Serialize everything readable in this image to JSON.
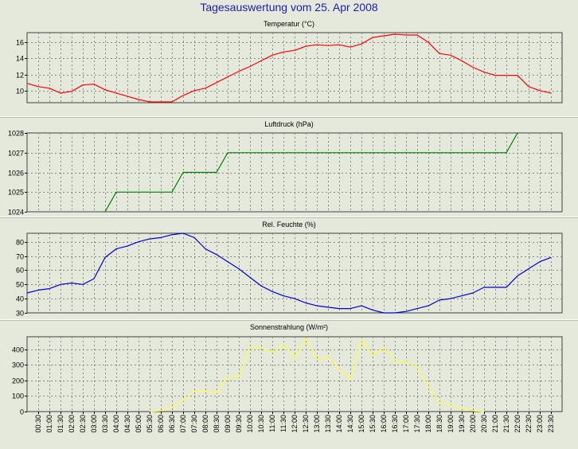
{
  "title": "Tagesauswertung vom 25. Apr 2008",
  "colors": {
    "background": "#e5e9dc",
    "plot_bg": "#e5e9dc",
    "grid": "#8a8a8a",
    "separator": "#ffffff",
    "temperature": "#ff0000",
    "pressure": "#008000",
    "humidity": "#0000cc",
    "radiation": "#ffff40"
  },
  "x_labels": [
    "00:30",
    "01:00",
    "01:30",
    "02:00",
    "02:30",
    "03:00",
    "03:30",
    "04:00",
    "04:30",
    "05:00",
    "05:30",
    "06:00",
    "06:30",
    "07:00",
    "07:30",
    "08:00",
    "08:30",
    "09:00",
    "09:30",
    "10:00",
    "10:30",
    "11:00",
    "11:30",
    "12:00",
    "12:30",
    "13:00",
    "13:30",
    "14:00",
    "14:30",
    "15:00",
    "15:30",
    "16:00",
    "16:30",
    "17:00",
    "17:30",
    "18:00",
    "18:30",
    "19:00",
    "19:30",
    "20:00",
    "20:30",
    "21:00",
    "21:30",
    "22:00",
    "22:30",
    "23:00",
    "23:30"
  ],
  "chart_data": [
    {
      "type": "line",
      "title": "Temperatur (°C)",
      "grid": true,
      "ylim": [
        8.5,
        17.2
      ],
      "yticks": [
        "10",
        "12",
        "14",
        "16"
      ],
      "series": [
        {
          "color": "#ff0000",
          "x": [
            0,
            1,
            2,
            3,
            4,
            5,
            6,
            7,
            8,
            9,
            10,
            11,
            12,
            13,
            14,
            15,
            16,
            17,
            18,
            19,
            20,
            21,
            22,
            23,
            24,
            25,
            26,
            27,
            28,
            29,
            30,
            31,
            32,
            33,
            34,
            35,
            36,
            37,
            38,
            39,
            40,
            41,
            42,
            43,
            44,
            45,
            46,
            47
          ],
          "values": [
            10.9,
            10.5,
            10.3,
            9.7,
            9.9,
            10.7,
            10.8,
            10.1,
            9.7,
            9.3,
            8.9,
            8.6,
            8.6,
            8.6,
            9.4,
            10.0,
            10.3,
            11.0,
            11.7,
            12.4,
            13.0,
            13.7,
            14.4,
            14.8,
            15.0,
            15.5,
            15.7,
            15.6,
            15.7,
            15.4,
            15.8,
            16.6,
            16.8,
            17.0,
            16.9,
            16.9,
            16.0,
            14.6,
            14.4,
            13.7,
            12.9,
            12.3,
            11.9,
            11.9,
            11.9,
            10.5,
            10.0,
            9.7
          ]
        }
      ]
    },
    {
      "type": "line",
      "title": "Luftdruck (hPa)",
      "grid": true,
      "ylim": [
        1024,
        1028
      ],
      "yticks": [
        "1024",
        "1025",
        "1026",
        "1027",
        "1028"
      ],
      "series": [
        {
          "color": "#008000",
          "x": [
            7,
            8,
            13,
            14,
            17,
            18,
            43,
            44
          ],
          "values": [
            1024,
            1025,
            1025,
            1026,
            1026,
            1027,
            1027,
            1028
          ]
        }
      ]
    },
    {
      "type": "line",
      "title": "Rel. Feuchte (%)",
      "grid": true,
      "ylim": [
        30,
        86
      ],
      "yticks": [
        "30",
        "40",
        "50",
        "60",
        "70",
        "80"
      ],
      "series": [
        {
          "color": "#0000cc",
          "x": [
            0,
            1,
            2,
            3,
            4,
            5,
            6,
            7,
            8,
            9,
            10,
            11,
            12,
            13,
            14,
            15,
            16,
            17,
            18,
            19,
            20,
            21,
            22,
            23,
            24,
            25,
            26,
            27,
            28,
            29,
            30,
            31,
            32,
            33,
            34,
            35,
            36,
            37,
            38,
            39,
            40,
            41,
            42,
            43,
            44,
            45,
            46,
            47
          ],
          "values": [
            44,
            46,
            47,
            50,
            51,
            50,
            54,
            69,
            75,
            77,
            80,
            82,
            83,
            85,
            86,
            83,
            75,
            71,
            66,
            61,
            55,
            49,
            45,
            42,
            40,
            37,
            35,
            34,
            33,
            33,
            35,
            32,
            30,
            30,
            31,
            33,
            35,
            39,
            40,
            42,
            44,
            48,
            48,
            48,
            56,
            61,
            66,
            69
          ]
        }
      ]
    },
    {
      "type": "line",
      "title": "Sonnenstrahlung (W/m²)",
      "grid": true,
      "ylim": [
        0,
        480
      ],
      "yticks": [
        "0",
        "100",
        "200",
        "300",
        "400"
      ],
      "series": [
        {
          "color": "#ffff40",
          "x": [
            11,
            12,
            13,
            14,
            15,
            16,
            17,
            18,
            19,
            20,
            21,
            22,
            23,
            24,
            25,
            26,
            27,
            28,
            29,
            30,
            31,
            32,
            33,
            34,
            35,
            36,
            37,
            38,
            39,
            40,
            41
          ],
          "values": [
            0,
            5,
            30,
            70,
            130,
            135,
            120,
            220,
            220,
            415,
            410,
            380,
            425,
            340,
            470,
            335,
            350,
            270,
            205,
            460,
            360,
            410,
            320,
            320,
            285,
            160,
            60,
            40,
            20,
            5,
            0
          ]
        }
      ]
    }
  ]
}
